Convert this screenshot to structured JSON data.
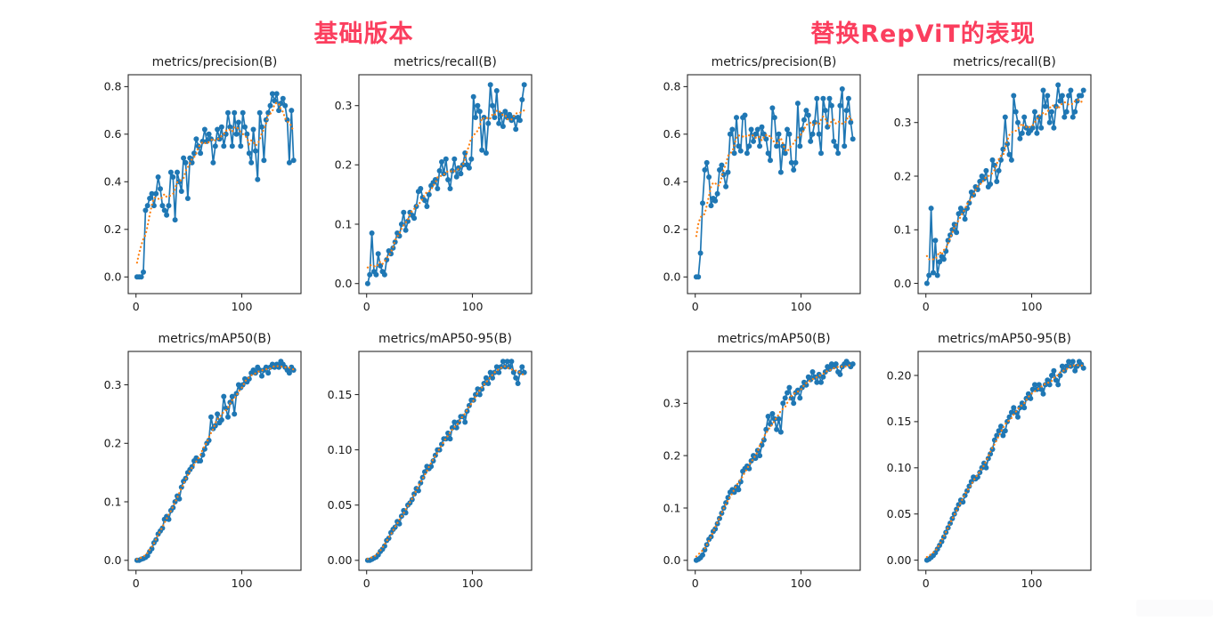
{
  "figure": {
    "background": "#ffffff",
    "description": "Two 2x2 grids of YOLO training metric curves compared side by side"
  },
  "style": {
    "series_color": "#1f77b4",
    "smooth_color": "#ff7f0e",
    "smooth_line": "dotted",
    "marker": "circle",
    "axis_color": "#2a2a2a",
    "text_color": "#1a1a1a",
    "grid": false,
    "legend": "none"
  },
  "groups": [
    {
      "title": "基础版本",
      "title_color": "#fb3e5e",
      "chart_indices": [
        0,
        1,
        2,
        3
      ]
    },
    {
      "title": "替换RepViT的表现",
      "title_color": "#fb3e5e",
      "chart_indices": [
        4,
        5,
        6,
        7
      ]
    }
  ],
  "chart_data": [
    {
      "group": "基础版本",
      "title": "metrics/precision(B)",
      "type": "line",
      "x_start": 1,
      "x_step": 2,
      "xlim": [
        -7.3,
        156
      ],
      "ylim": [
        -0.07,
        0.85
      ],
      "xticks": [
        0,
        100
      ],
      "xtick_labels": [
        "0",
        "100"
      ],
      "yticks": [
        0.0,
        0.2,
        0.4,
        0.6,
        0.8
      ],
      "ytick_labels": [
        "0.0",
        "0.2",
        "0.4",
        "0.6",
        "0.8"
      ],
      "y": [
        0,
        0,
        0,
        0.02,
        0.28,
        0.3,
        0.33,
        0.35,
        0.3,
        0.35,
        0.42,
        0.37,
        0.3,
        0.28,
        0.26,
        0.3,
        0.44,
        0.42,
        0.24,
        0.44,
        0.4,
        0.36,
        0.5,
        0.48,
        0.33,
        0.5,
        0.48,
        0.52,
        0.58,
        0.55,
        0.52,
        0.57,
        0.62,
        0.57,
        0.6,
        0.58,
        0.48,
        0.55,
        0.62,
        0.58,
        0.63,
        0.55,
        0.6,
        0.69,
        0.63,
        0.55,
        0.69,
        0.6,
        0.65,
        0.55,
        0.69,
        0.63,
        0.6,
        0.52,
        0.48,
        0.62,
        0.53,
        0.41,
        0.69,
        0.63,
        0.49,
        0.66,
        0.69,
        0.72,
        0.77,
        0.74,
        0.77,
        0.7,
        0.73,
        0.75,
        0.72,
        0.66,
        0.48,
        0.7,
        0.49
      ]
    },
    {
      "group": "基础版本",
      "title": "metrics/recall(B)",
      "type": "line",
      "x_start": 1,
      "x_step": 2,
      "xlim": [
        -7.3,
        156
      ],
      "ylim": [
        -0.017,
        0.352
      ],
      "xticks": [
        0,
        100
      ],
      "xtick_labels": [
        "0",
        "100"
      ],
      "yticks": [
        0.0,
        0.1,
        0.2,
        0.3
      ],
      "ytick_labels": [
        "0.0",
        "0.1",
        "0.2",
        "0.3"
      ],
      "y": [
        0,
        0.015,
        0.085,
        0.02,
        0.015,
        0.05,
        0.03,
        0.02,
        0.015,
        0.04,
        0.055,
        0.05,
        0.06,
        0.07,
        0.085,
        0.08,
        0.1,
        0.12,
        0.09,
        0.105,
        0.12,
        0.115,
        0.11,
        0.13,
        0.155,
        0.16,
        0.145,
        0.14,
        0.13,
        0.15,
        0.165,
        0.17,
        0.175,
        0.16,
        0.19,
        0.205,
        0.185,
        0.21,
        0.175,
        0.16,
        0.19,
        0.21,
        0.18,
        0.195,
        0.185,
        0.2,
        0.22,
        0.2,
        0.195,
        0.21,
        0.315,
        0.28,
        0.3,
        0.29,
        0.225,
        0.28,
        0.22,
        0.27,
        0.335,
        0.3,
        0.28,
        0.325,
        0.27,
        0.285,
        0.265,
        0.29,
        0.28,
        0.285,
        0.275,
        0.28,
        0.26,
        0.28,
        0.275,
        0.31,
        0.335
      ]
    },
    {
      "group": "基础版本",
      "title": "metrics/mAP50(B)",
      "type": "line",
      "x_start": 1,
      "x_step": 2,
      "xlim": [
        -7.3,
        156
      ],
      "ylim": [
        -0.017,
        0.357
      ],
      "xticks": [
        0,
        100
      ],
      "xtick_labels": [
        "0",
        "100"
      ],
      "yticks": [
        0.0,
        0.1,
        0.2,
        0.3
      ],
      "ytick_labels": [
        "0.0",
        "0.1",
        "0.2",
        "0.3"
      ],
      "y": [
        0,
        0,
        0.002,
        0.003,
        0.005,
        0.008,
        0.015,
        0.02,
        0.03,
        0.035,
        0.045,
        0.05,
        0.055,
        0.07,
        0.075,
        0.07,
        0.085,
        0.09,
        0.1,
        0.11,
        0.105,
        0.125,
        0.135,
        0.14,
        0.15,
        0.155,
        0.16,
        0.17,
        0.175,
        0.17,
        0.17,
        0.18,
        0.19,
        0.2,
        0.205,
        0.245,
        0.225,
        0.23,
        0.25,
        0.235,
        0.24,
        0.28,
        0.26,
        0.245,
        0.27,
        0.28,
        0.25,
        0.285,
        0.3,
        0.295,
        0.3,
        0.31,
        0.305,
        0.31,
        0.32,
        0.325,
        0.32,
        0.33,
        0.325,
        0.315,
        0.325,
        0.33,
        0.32,
        0.33,
        0.335,
        0.33,
        0.335,
        0.33,
        0.34,
        0.335,
        0.33,
        0.325,
        0.32,
        0.33,
        0.325
      ]
    },
    {
      "group": "基础版本",
      "title": "metrics/mAP50-95(B)",
      "type": "line",
      "x_start": 1,
      "x_step": 2,
      "xlim": [
        -7.3,
        156
      ],
      "ylim": [
        -0.009,
        0.189
      ],
      "xticks": [
        0,
        100
      ],
      "xtick_labels": [
        "0",
        "100"
      ],
      "yticks": [
        0.0,
        0.05,
        0.1,
        0.15
      ],
      "ytick_labels": [
        "0.00",
        "0.05",
        "0.10",
        "0.15"
      ],
      "y": [
        0,
        0,
        0.001,
        0.002,
        0.003,
        0.005,
        0.008,
        0.01,
        0.013,
        0.018,
        0.02,
        0.025,
        0.028,
        0.03,
        0.035,
        0.033,
        0.04,
        0.045,
        0.043,
        0.05,
        0.052,
        0.055,
        0.06,
        0.065,
        0.063,
        0.07,
        0.075,
        0.08,
        0.085,
        0.083,
        0.085,
        0.09,
        0.095,
        0.1,
        0.1,
        0.105,
        0.11,
        0.11,
        0.115,
        0.11,
        0.12,
        0.125,
        0.12,
        0.125,
        0.13,
        0.13,
        0.125,
        0.135,
        0.14,
        0.145,
        0.145,
        0.15,
        0.155,
        0.15,
        0.155,
        0.16,
        0.165,
        0.16,
        0.17,
        0.165,
        0.17,
        0.175,
        0.17,
        0.175,
        0.18,
        0.175,
        0.18,
        0.175,
        0.18,
        0.17,
        0.165,
        0.16,
        0.17,
        0.175,
        0.17
      ]
    },
    {
      "group": "替换RepViT的表现",
      "title": "metrics/precision(B)",
      "type": "line",
      "x_start": 1,
      "x_step": 2,
      "xlim": [
        -7.3,
        156
      ],
      "ylim": [
        -0.07,
        0.85
      ],
      "xticks": [
        0,
        100
      ],
      "xtick_labels": [
        "0",
        "100"
      ],
      "yticks": [
        0.0,
        0.2,
        0.4,
        0.6,
        0.8
      ],
      "ytick_labels": [
        "0.0",
        "0.2",
        "0.4",
        "0.6",
        "0.8"
      ],
      "y": [
        0,
        0,
        0.1,
        0.31,
        0.45,
        0.48,
        0.42,
        0.3,
        0.33,
        0.32,
        0.35,
        0.45,
        0.47,
        0.43,
        0.38,
        0.44,
        0.6,
        0.62,
        0.52,
        0.67,
        0.55,
        0.53,
        0.67,
        0.68,
        0.52,
        0.55,
        0.62,
        0.57,
        0.6,
        0.62,
        0.55,
        0.63,
        0.6,
        0.58,
        0.52,
        0.49,
        0.71,
        0.67,
        0.55,
        0.6,
        0.44,
        0.55,
        0.52,
        0.62,
        0.6,
        0.48,
        0.45,
        0.48,
        0.73,
        0.55,
        0.62,
        0.66,
        0.7,
        0.68,
        0.57,
        0.6,
        0.65,
        0.75,
        0.6,
        0.52,
        0.75,
        0.7,
        0.63,
        0.75,
        0.72,
        0.57,
        0.55,
        0.52,
        0.72,
        0.79,
        0.55,
        0.7,
        0.75,
        0.65,
        0.58
      ]
    },
    {
      "group": "替换RepViT的表现",
      "title": "metrics/recall(B)",
      "type": "line",
      "x_start": 1,
      "x_step": 2,
      "xlim": [
        -7.3,
        156
      ],
      "ylim": [
        -0.019,
        0.389
      ],
      "xticks": [
        0,
        100
      ],
      "xtick_labels": [
        "0",
        "100"
      ],
      "yticks": [
        0.0,
        0.1,
        0.2,
        0.3
      ],
      "ytick_labels": [
        "0.0",
        "0.1",
        "0.2",
        "0.3"
      ],
      "y": [
        0,
        0.015,
        0.14,
        0.02,
        0.08,
        0.015,
        0.04,
        0.05,
        0.045,
        0.06,
        0.08,
        0.09,
        0.1,
        0.11,
        0.095,
        0.13,
        0.14,
        0.135,
        0.12,
        0.14,
        0.15,
        0.17,
        0.165,
        0.18,
        0.175,
        0.19,
        0.2,
        0.195,
        0.21,
        0.18,
        0.185,
        0.23,
        0.22,
        0.19,
        0.21,
        0.23,
        0.25,
        0.31,
        0.26,
        0.24,
        0.23,
        0.35,
        0.32,
        0.3,
        0.27,
        0.28,
        0.31,
        0.29,
        0.28,
        0.285,
        0.29,
        0.32,
        0.28,
        0.31,
        0.29,
        0.36,
        0.33,
        0.35,
        0.3,
        0.32,
        0.29,
        0.33,
        0.37,
        0.34,
        0.35,
        0.31,
        0.32,
        0.35,
        0.36,
        0.31,
        0.32,
        0.34,
        0.35,
        0.35,
        0.36
      ]
    },
    {
      "group": "替换RepViT的表现",
      "title": "metrics/mAP50(B)",
      "type": "line",
      "x_start": 1,
      "x_step": 2,
      "xlim": [
        -7.3,
        156
      ],
      "ylim": [
        -0.019,
        0.399
      ],
      "xticks": [
        0,
        100
      ],
      "xtick_labels": [
        "0",
        "100"
      ],
      "yticks": [
        0.0,
        0.1,
        0.2,
        0.3
      ],
      "ytick_labels": [
        "0.0",
        "0.1",
        "0.2",
        "0.3"
      ],
      "y": [
        0,
        0.002,
        0.005,
        0.01,
        0.02,
        0.03,
        0.04,
        0.045,
        0.055,
        0.06,
        0.07,
        0.08,
        0.09,
        0.1,
        0.11,
        0.12,
        0.13,
        0.135,
        0.13,
        0.14,
        0.135,
        0.15,
        0.17,
        0.175,
        0.18,
        0.175,
        0.19,
        0.2,
        0.195,
        0.21,
        0.2,
        0.22,
        0.23,
        0.25,
        0.275,
        0.26,
        0.28,
        0.27,
        0.25,
        0.27,
        0.245,
        0.3,
        0.31,
        0.32,
        0.33,
        0.31,
        0.3,
        0.32,
        0.325,
        0.31,
        0.33,
        0.34,
        0.335,
        0.35,
        0.345,
        0.36,
        0.35,
        0.34,
        0.355,
        0.34,
        0.35,
        0.36,
        0.37,
        0.365,
        0.375,
        0.37,
        0.375,
        0.36,
        0.355,
        0.37,
        0.375,
        0.38,
        0.375,
        0.37,
        0.375
      ]
    },
    {
      "group": "替换RepViT的表现",
      "title": "metrics/mAP50-95(B)",
      "type": "line",
      "x_start": 1,
      "x_step": 2,
      "xlim": [
        -7.3,
        156
      ],
      "ylim": [
        -0.011,
        0.226
      ],
      "xticks": [
        0,
        100
      ],
      "xtick_labels": [
        "0",
        "100"
      ],
      "yticks": [
        0.0,
        0.05,
        0.1,
        0.15,
        0.2
      ],
      "ytick_labels": [
        "0.00",
        "0.05",
        "0.10",
        "0.15",
        "0.20"
      ],
      "y": [
        0,
        0.001,
        0.003,
        0.005,
        0.008,
        0.012,
        0.016,
        0.02,
        0.025,
        0.03,
        0.035,
        0.04,
        0.045,
        0.05,
        0.055,
        0.06,
        0.065,
        0.063,
        0.07,
        0.075,
        0.08,
        0.085,
        0.09,
        0.088,
        0.09,
        0.095,
        0.1,
        0.105,
        0.1,
        0.11,
        0.115,
        0.12,
        0.13,
        0.135,
        0.14,
        0.145,
        0.135,
        0.14,
        0.15,
        0.155,
        0.16,
        0.165,
        0.16,
        0.155,
        0.165,
        0.17,
        0.165,
        0.175,
        0.18,
        0.175,
        0.185,
        0.19,
        0.185,
        0.19,
        0.185,
        0.18,
        0.19,
        0.195,
        0.19,
        0.2,
        0.205,
        0.195,
        0.19,
        0.2,
        0.21,
        0.205,
        0.21,
        0.215,
        0.21,
        0.215,
        0.205,
        0.21,
        0.215,
        0.212,
        0.208
      ]
    }
  ]
}
